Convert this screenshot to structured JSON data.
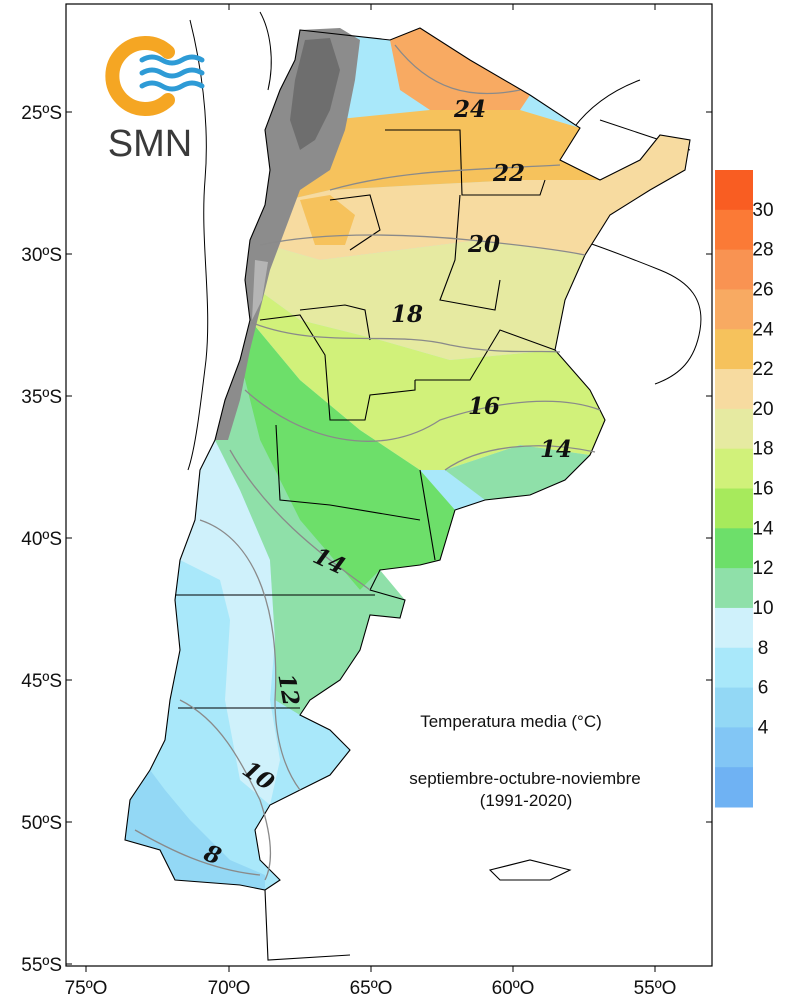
{
  "logo": {
    "text": "SMN",
    "ring_color": "#f5a623",
    "wave_color": "#2e9bd6"
  },
  "title": {
    "line1": "Temperatura media (°C)",
    "line2": "septiembre-octubre-noviembre",
    "line3": "(1991-2020)"
  },
  "axes": {
    "lat_labels": [
      "25ºS",
      "30ºS",
      "35ºS",
      "40ºS",
      "45ºS",
      "50ºS",
      "55ºS"
    ],
    "lon_labels": [
      "75ºO",
      "70ºO",
      "65ºO",
      "60ºO",
      "55ºO"
    ]
  },
  "isolines": [
    "24",
    "22",
    "20",
    "18",
    "16",
    "14",
    "14",
    "12",
    "10",
    "8"
  ],
  "legend": {
    "labels": [
      "30",
      "28",
      "26",
      "24",
      "22",
      "20",
      "18",
      "16",
      "14",
      "12",
      "10",
      "8",
      "6",
      "4"
    ],
    "colors": [
      "#f95d22",
      "#fb7a36",
      "#f99352",
      "#f8aa62",
      "#f6c25c",
      "#f7dba0",
      "#e6eaa1",
      "#d1f17a",
      "#a7ea5c",
      "#6ddf6a",
      "#8fe0a9",
      "#cff1fb",
      "#a9e8fa",
      "#93d8f5",
      "#82c6f5",
      "#6fb2f3"
    ]
  }
}
